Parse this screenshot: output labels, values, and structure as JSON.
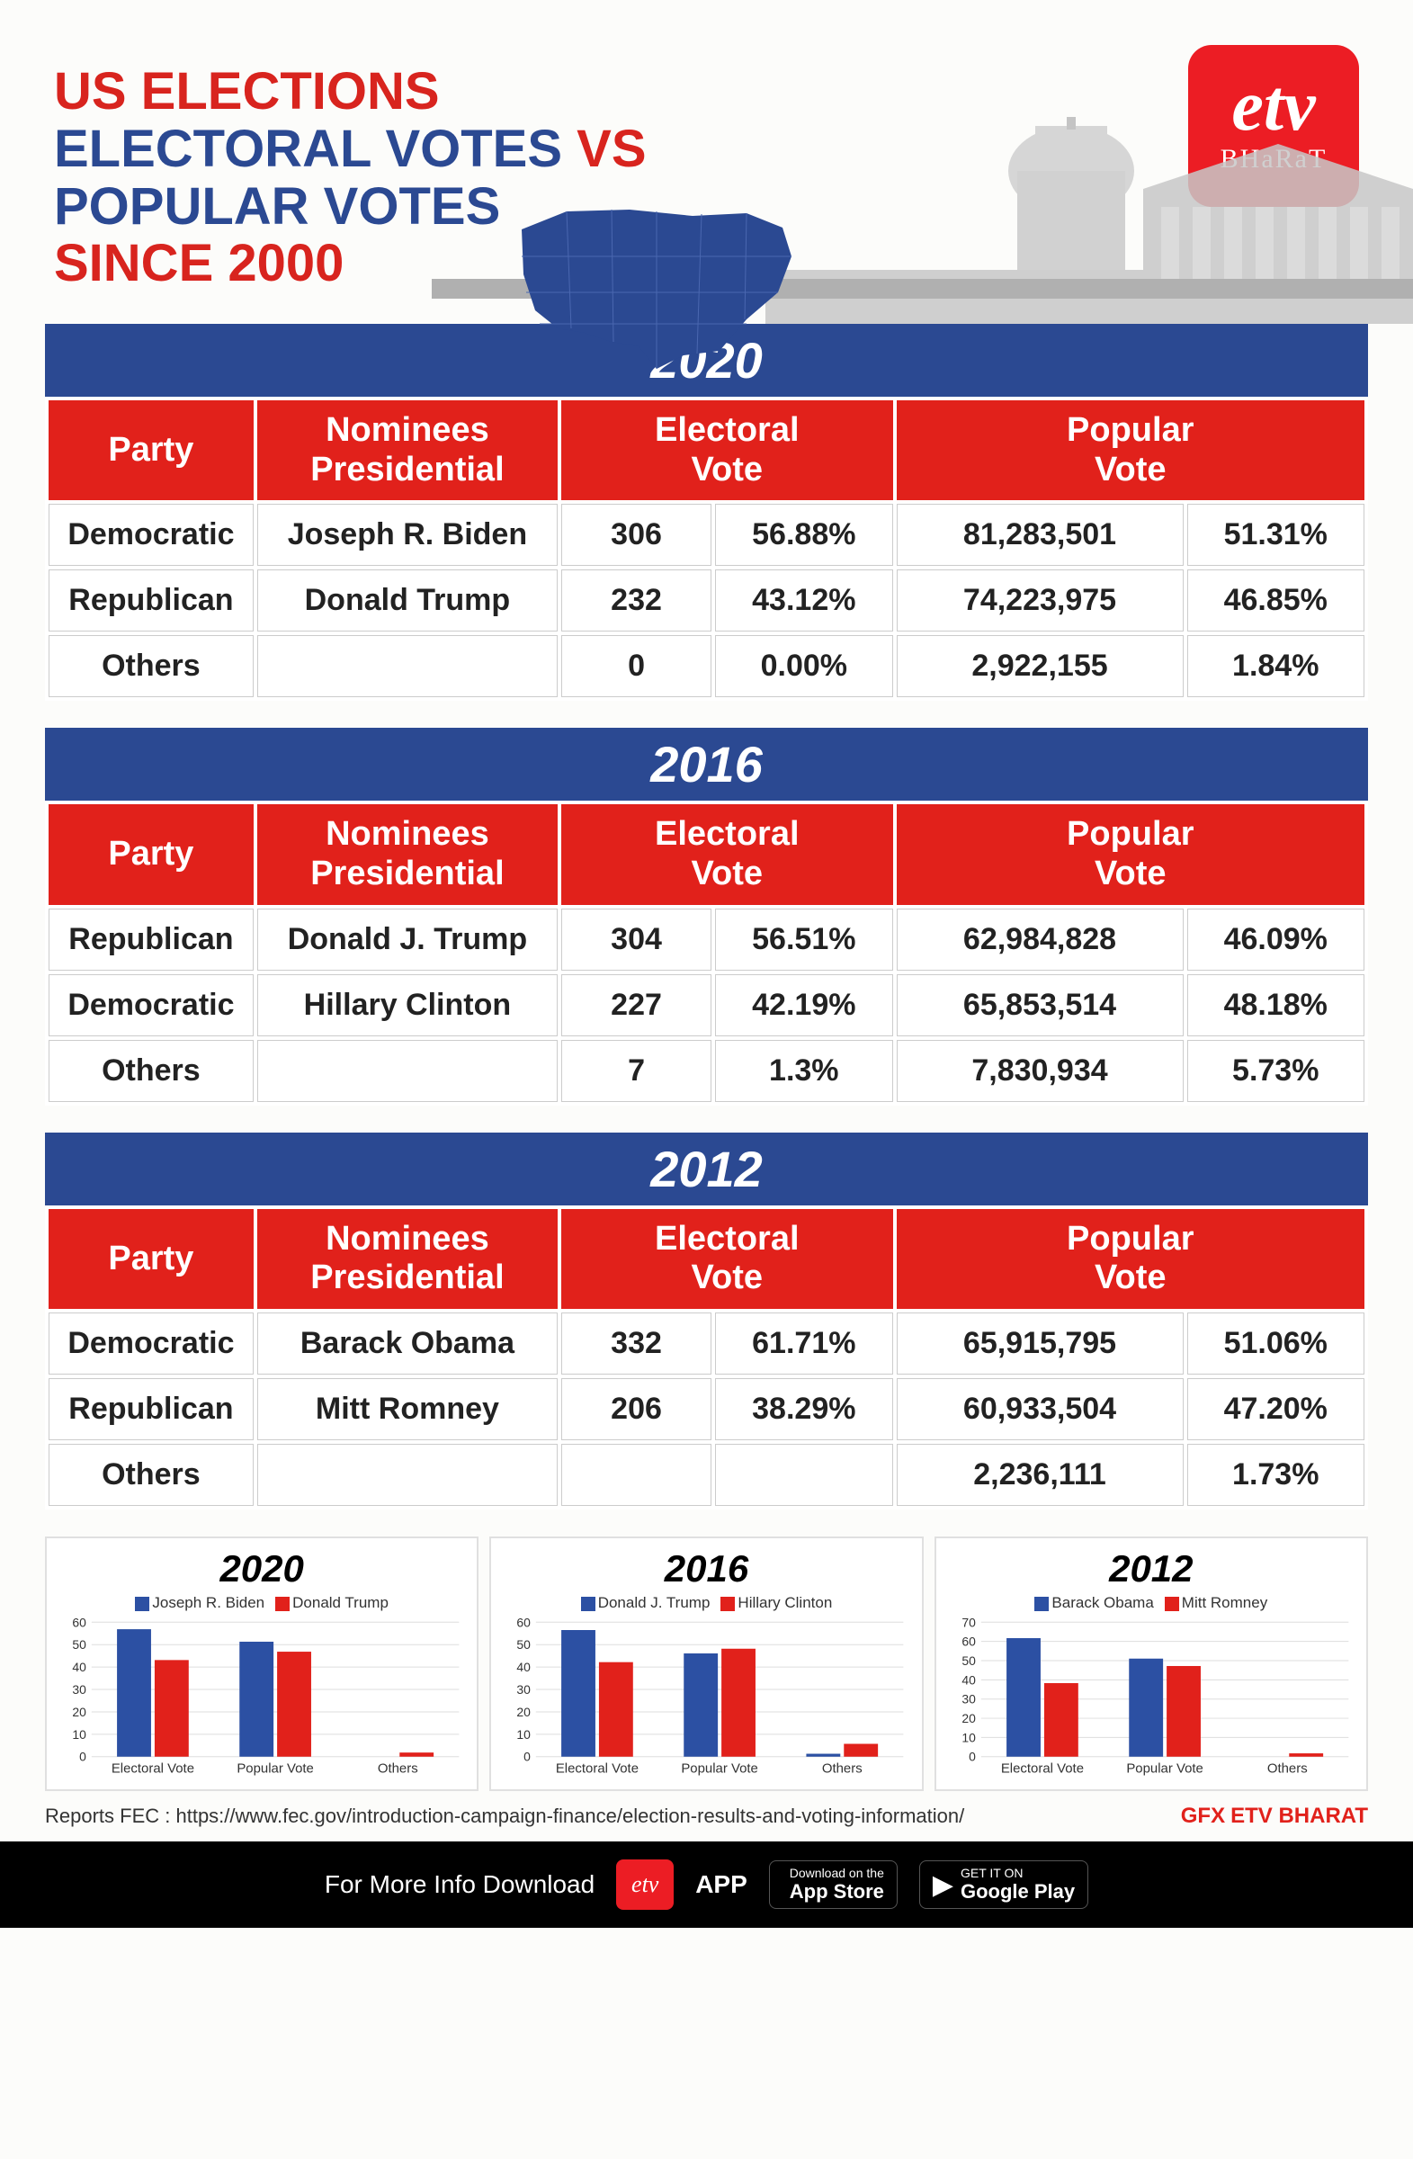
{
  "colors": {
    "red": "#d8241e",
    "blue": "#2b4992",
    "header_red": "#e1211b",
    "bar_blue": "#2c50a3",
    "bar_red": "#e1211b"
  },
  "logo": {
    "top": "etv",
    "bottom": "BHaRaT"
  },
  "title": {
    "line1": {
      "text": "US ELECTIONS",
      "color": "#d8241e"
    },
    "line2a": {
      "text": "ELECTORAL VOTES ",
      "color": "#2b4992"
    },
    "line2b": {
      "text": "VS",
      "color": "#d8241e"
    },
    "line3": {
      "text": "POPULAR VOTES",
      "color": "#2b4992"
    },
    "line4": {
      "text": "SINCE 2000",
      "color": "#d8241e"
    }
  },
  "columns": {
    "party": "Party",
    "nominees_l1": "Nominees",
    "nominees_l2": "Presidential",
    "electoral_l1": "Electoral",
    "electoral_l2": "Vote",
    "popular_l1": "Popular",
    "popular_l2": "Vote"
  },
  "years": [
    {
      "year": "2020",
      "rows": [
        {
          "party": "Democratic",
          "nominee": "Joseph R. Biden",
          "ev": "306",
          "ev_pct": "56.88%",
          "pv": "81,283,501",
          "pv_pct": "51.31%"
        },
        {
          "party": "Republican",
          "nominee": "Donald Trump",
          "ev": "232",
          "ev_pct": "43.12%",
          "pv": "74,223,975",
          "pv_pct": "46.85%"
        },
        {
          "party": "Others",
          "nominee": "",
          "ev": "0",
          "ev_pct": "0.00%",
          "pv": "2,922,155",
          "pv_pct": "1.84%"
        }
      ]
    },
    {
      "year": "2016",
      "rows": [
        {
          "party": "Republican",
          "nominee": "Donald J. Trump",
          "ev": "304",
          "ev_pct": "56.51%",
          "pv": "62,984,828",
          "pv_pct": "46.09%"
        },
        {
          "party": "Democratic",
          "nominee": "Hillary Clinton",
          "ev": "227",
          "ev_pct": "42.19%",
          "pv": "65,853,514",
          "pv_pct": "48.18%"
        },
        {
          "party": "Others",
          "nominee": "",
          "ev": "7",
          "ev_pct": "1.3%",
          "pv": "7,830,934",
          "pv_pct": "5.73%"
        }
      ]
    },
    {
      "year": "2012",
      "rows": [
        {
          "party": "Democratic",
          "nominee": "Barack Obama",
          "ev": "332",
          "ev_pct": "61.71%",
          "pv": "65,915,795",
          "pv_pct": "51.06%"
        },
        {
          "party": "Republican",
          "nominee": "Mitt Romney",
          "ev": "206",
          "ev_pct": "38.29%",
          "pv": "60,933,504",
          "pv_pct": "47.20%"
        },
        {
          "party": "Others",
          "nominee": "",
          "ev": "",
          "ev_pct": "",
          "pv": "2,236,111",
          "pv_pct": "1.73%"
        }
      ]
    }
  ],
  "charts": [
    {
      "title": "2020",
      "legend": [
        {
          "label": "Joseph R. Biden",
          "color": "#2c50a3"
        },
        {
          "label": "Donald Trump",
          "color": "#e1211b"
        }
      ],
      "ymax": 60,
      "yticks": [
        0,
        10,
        20,
        30,
        40,
        50,
        60
      ],
      "categories": [
        "Electoral Vote",
        "Popular Vote",
        "Others"
      ],
      "series": [
        {
          "color": "#2c50a3",
          "values": [
            56.88,
            51.31,
            0
          ]
        },
        {
          "color": "#e1211b",
          "values": [
            43.12,
            46.85,
            1.84
          ]
        }
      ]
    },
    {
      "title": "2016",
      "legend": [
        {
          "label": "Donald J. Trump",
          "color": "#2c50a3"
        },
        {
          "label": "Hillary Clinton",
          "color": "#e1211b"
        }
      ],
      "ymax": 60,
      "yticks": [
        0,
        10,
        20,
        30,
        40,
        50,
        60
      ],
      "categories": [
        "Electoral Vote",
        "Popular Vote",
        "Others"
      ],
      "series": [
        {
          "color": "#2c50a3",
          "values": [
            56.51,
            46.09,
            1.3
          ]
        },
        {
          "color": "#e1211b",
          "values": [
            42.19,
            48.18,
            5.73
          ]
        }
      ]
    },
    {
      "title": "2012",
      "legend": [
        {
          "label": "Barack Obama",
          "color": "#2c50a3"
        },
        {
          "label": "Mitt Romney",
          "color": "#e1211b"
        }
      ],
      "ymax": 70,
      "yticks": [
        0,
        10,
        20,
        30,
        40,
        50,
        60,
        70
      ],
      "categories": [
        "Electoral Vote",
        "Popular Vote",
        "Others"
      ],
      "series": [
        {
          "color": "#2c50a3",
          "values": [
            61.71,
            51.06,
            0
          ]
        },
        {
          "color": "#e1211b",
          "values": [
            38.29,
            47.2,
            1.73
          ]
        }
      ]
    }
  ],
  "source": {
    "label": "Reports FEC : ",
    "url": "https://www.fec.gov/introduction-campaign-finance/election-results-and-voting-information/"
  },
  "gfx": {
    "a": "GFX",
    "b": "ETV BHARAT"
  },
  "footer": {
    "text": "For More Info Download",
    "app": "APP",
    "appstore": {
      "small": "Download on the",
      "big": "App Store"
    },
    "playstore": {
      "small": "GET IT ON",
      "big": "Google Play"
    }
  }
}
